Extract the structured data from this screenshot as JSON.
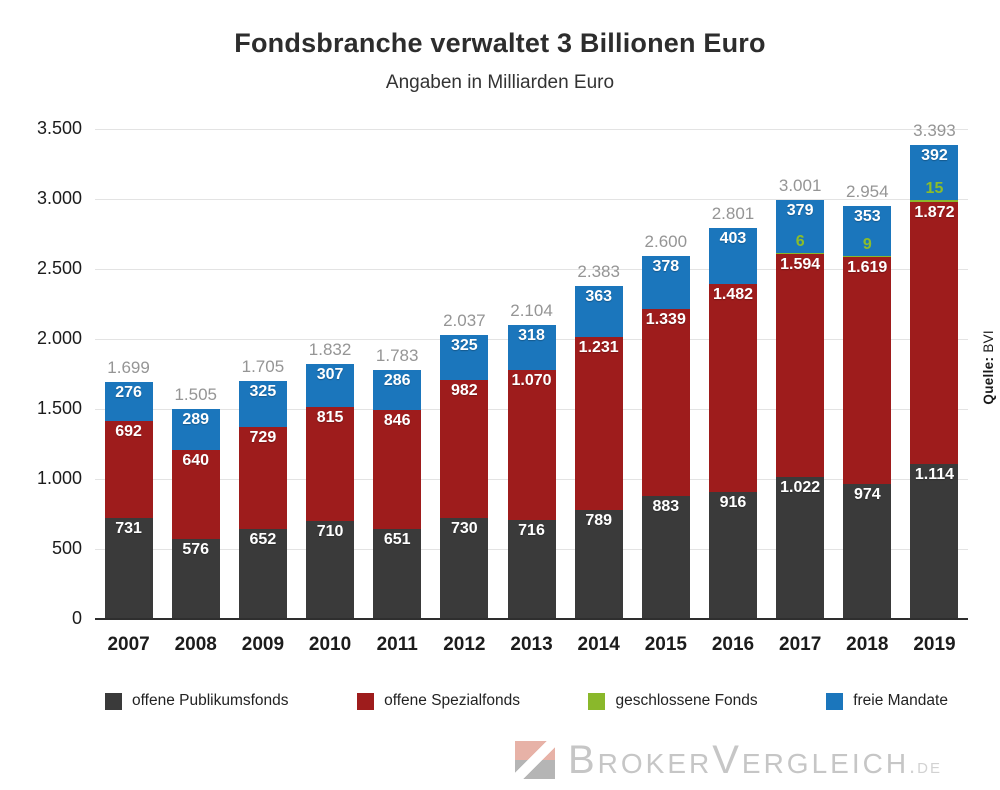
{
  "header": {
    "title": "Fondsbranche verwaltet 3 Billionen Euro",
    "subtitle": "Angaben in Milliarden Euro"
  },
  "source": {
    "label": "Quelle:",
    "value": "BVI"
  },
  "legend": {
    "items": [
      {
        "label": "offene Publikumsfonds",
        "color": "#3a3a3a"
      },
      {
        "label": "offene Spezialfonds",
        "color": "#9e1c1c"
      },
      {
        "label": "geschlossene Fonds",
        "color": "#8ab82b"
      },
      {
        "label": "freie Mandate",
        "color": "#1b76bc"
      }
    ]
  },
  "footer": {
    "brand": "BrokerVergleich",
    "tld": ".de"
  },
  "colors": {
    "publikumsfonds": "#3a3a3a",
    "spezialfonds": "#9e1c1c",
    "geschlossene_fonds": "#8ab82b",
    "freie_mandate": "#1b76bc",
    "total_label": "#959595",
    "gridline": "#e3e3e3",
    "axis_line": "#2e2e2e"
  },
  "chart_data": {
    "type": "bar",
    "stacked": true,
    "title": "Fondsbranche verwaltet 3 Billionen Euro",
    "subtitle": "Angaben in Milliarden Euro",
    "unit": "Milliarden Euro",
    "grid": "horizontal",
    "legend_position": "bottom",
    "categories": [
      "2007",
      "2008",
      "2009",
      "2010",
      "2011",
      "2012",
      "2013",
      "2014",
      "2015",
      "2016",
      "2017",
      "2018",
      "2019"
    ],
    "ylim": [
      0,
      3500
    ],
    "yticks": [
      {
        "value": 0,
        "label": "0"
      },
      {
        "value": 500,
        "label": "500"
      },
      {
        "value": 1000,
        "label": "1.000"
      },
      {
        "value": 1500,
        "label": "1.500"
      },
      {
        "value": 2000,
        "label": "2.000"
      },
      {
        "value": 2500,
        "label": "2.500"
      },
      {
        "value": 3000,
        "label": "3.000"
      },
      {
        "value": 3500,
        "label": "3.500"
      }
    ],
    "series": [
      {
        "name": "offene Publikumsfonds",
        "color": "#3a3a3a",
        "label_color": "#ffffff",
        "values": [
          731,
          576,
          652,
          710,
          651,
          730,
          716,
          789,
          883,
          916,
          1022,
          974,
          1114
        ],
        "labels": [
          "731",
          "576",
          "652",
          "710",
          "651",
          "730",
          "716",
          "789",
          "883",
          "916",
          "1.022",
          "974",
          "1.114"
        ]
      },
      {
        "name": "offene Spezialfonds",
        "color": "#9e1c1c",
        "label_color": "#ffffff",
        "values": [
          692,
          640,
          729,
          815,
          846,
          982,
          1070,
          1231,
          1339,
          1482,
          1594,
          1619,
          1872
        ],
        "labels": [
          "692",
          "640",
          "729",
          "815",
          "846",
          "982",
          "1.070",
          "1.231",
          "1.339",
          "1.482",
          "1.594",
          "1.619",
          "1.872"
        ]
      },
      {
        "name": "geschlossene Fonds",
        "color": "#8ab82b",
        "label_color": "#8cbd2a",
        "label_placement": "floating",
        "values": [
          0,
          0,
          0,
          0,
          0,
          0,
          0,
          0,
          0,
          0,
          6,
          9,
          15
        ],
        "labels": [
          "",
          "",
          "",
          "",
          "",
          "",
          "",
          "",
          "",
          "",
          "6",
          "9",
          "15"
        ]
      },
      {
        "name": "freie Mandate",
        "color": "#1b76bc",
        "label_color": "#ffffff",
        "values": [
          276,
          289,
          325,
          307,
          286,
          325,
          318,
          363,
          378,
          403,
          379,
          353,
          392
        ],
        "labels": [
          "276",
          "289",
          "325",
          "307",
          "286",
          "325",
          "318",
          "363",
          "378",
          "403",
          "379",
          "353",
          "392"
        ]
      }
    ],
    "totals": [
      1699,
      1505,
      1705,
      1832,
      1783,
      2037,
      2104,
      2383,
      2600,
      2801,
      3001,
      2954,
      3393
    ],
    "totals_labels": [
      "1.699",
      "1.505",
      "1.705",
      "1.832",
      "1.783",
      "2.037",
      "2.104",
      "2.383",
      "2.600",
      "2.801",
      "3.001",
      "2.954",
      "3.393"
    ]
  }
}
